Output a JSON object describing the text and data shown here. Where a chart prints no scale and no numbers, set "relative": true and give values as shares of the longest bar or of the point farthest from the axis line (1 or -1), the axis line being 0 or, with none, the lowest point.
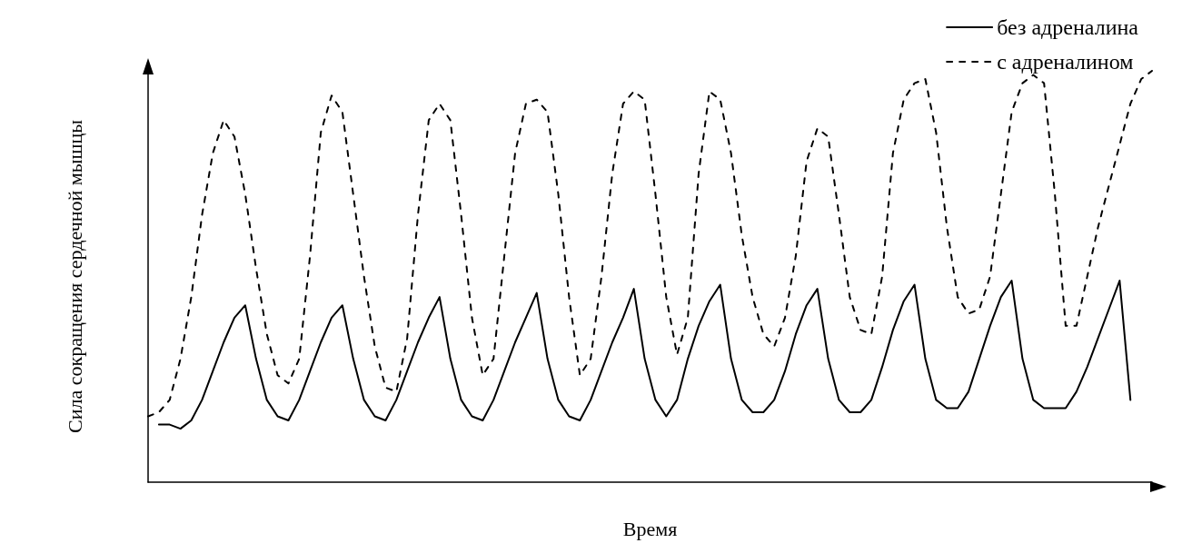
{
  "chart_data": {
    "type": "line",
    "relative": true,
    "xlabel": "Время",
    "ylabel": "Сила сокращения сердечной мышцы",
    "legend": "top right",
    "categories": [
      null,
      null,
      null,
      null,
      null,
      null,
      null,
      null,
      null,
      null,
      null,
      null,
      null,
      null,
      null,
      null,
      null,
      null,
      null,
      null,
      null,
      null,
      null,
      null,
      null,
      null,
      null,
      null,
      null,
      null,
      null,
      null,
      null,
      null,
      null,
      null,
      null,
      null,
      null,
      null,
      null,
      null,
      null,
      null,
      null,
      null,
      null,
      null,
      null,
      null,
      null,
      null,
      null,
      null,
      null,
      null,
      null,
      null,
      null,
      null,
      null,
      null,
      null,
      null,
      null,
      null,
      null,
      null,
      null,
      null,
      null,
      null,
      null,
      null,
      null,
      null,
      null,
      null,
      null,
      null,
      null,
      null,
      null,
      null,
      null,
      null,
      null,
      null,
      null,
      null,
      null,
      null,
      null,
      null
    ],
    "series": [
      {
        "name": "без адреналина",
        "color": "#000000",
        "line_style": "solid",
        "values": [
          null,
          0.14,
          0.14,
          0.13,
          0.15,
          0.2,
          0.27,
          0.34,
          0.4,
          0.43,
          0.3,
          0.2,
          0.16,
          0.15,
          0.2,
          0.27,
          0.34,
          0.4,
          0.43,
          0.3,
          0.2,
          0.16,
          0.15,
          0.2,
          0.27,
          0.34,
          0.4,
          0.45,
          0.3,
          0.2,
          0.16,
          0.15,
          0.2,
          0.27,
          0.34,
          0.4,
          0.46,
          0.3,
          0.2,
          0.16,
          0.15,
          0.2,
          0.27,
          0.34,
          0.4,
          0.47,
          0.3,
          0.2,
          0.16,
          0.2,
          0.3,
          0.38,
          0.44,
          0.48,
          0.3,
          0.2,
          0.17,
          0.17,
          0.2,
          0.27,
          0.36,
          0.43,
          0.47,
          0.3,
          0.2,
          0.17,
          0.17,
          0.2,
          0.28,
          0.37,
          0.44,
          0.48,
          0.3,
          0.2,
          0.18,
          0.18,
          0.22,
          0.3,
          0.38,
          0.45,
          0.49,
          0.3,
          0.2,
          0.18,
          0.18,
          0.18,
          0.22,
          0.28,
          0.35,
          0.42,
          0.49,
          0.2,
          null,
          null
        ]
      },
      {
        "name": "с адреналином",
        "color": "#000000",
        "line_style": "dashed",
        "values": [
          0.16,
          0.17,
          0.2,
          0.3,
          0.45,
          0.65,
          0.8,
          0.88,
          0.84,
          0.7,
          0.52,
          0.36,
          0.26,
          0.24,
          0.3,
          0.55,
          0.85,
          0.94,
          0.9,
          0.7,
          0.5,
          0.33,
          0.23,
          0.22,
          0.35,
          0.65,
          0.88,
          0.92,
          0.88,
          0.65,
          0.4,
          0.26,
          0.3,
          0.55,
          0.8,
          0.92,
          0.93,
          0.9,
          0.7,
          0.45,
          0.26,
          0.3,
          0.5,
          0.75,
          0.92,
          0.95,
          0.93,
          0.7,
          0.45,
          0.31,
          0.4,
          0.75,
          0.95,
          0.93,
          0.8,
          0.6,
          0.45,
          0.36,
          0.33,
          0.4,
          0.55,
          0.78,
          0.86,
          0.84,
          0.65,
          0.45,
          0.37,
          0.36,
          0.5,
          0.8,
          0.93,
          0.97,
          0.98,
          0.85,
          0.62,
          0.45,
          0.41,
          0.42,
          0.5,
          0.7,
          0.9,
          0.97,
          0.99,
          0.97,
          0.7,
          0.38,
          0.38,
          0.5,
          0.62,
          0.72,
          0.82,
          0.92,
          0.98,
          1.0
        ]
      }
    ]
  }
}
